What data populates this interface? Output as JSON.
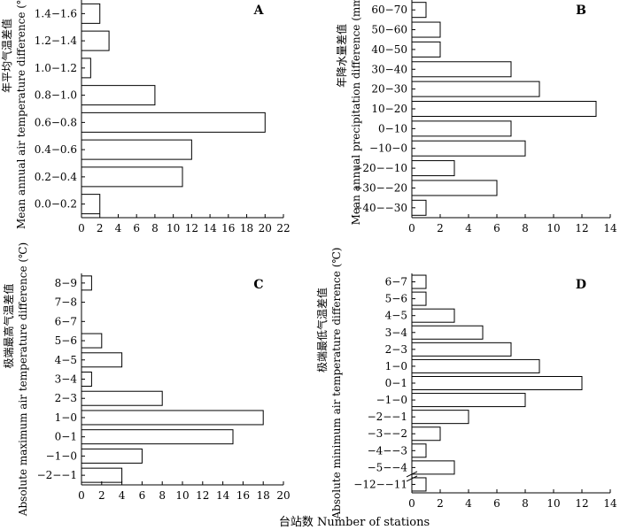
{
  "x_axis_label": "台站数 Number of stations",
  "chart_data": [
    {
      "type": "bar",
      "orientation": "horizontal",
      "panel": "A",
      "ylabel": "Mean annual air temperature difference (℃)",
      "ylabel_cn": "年平均气温差值",
      "categories": [
        "1.4−1.6",
        "1.2−1.4",
        "1.0−1.2",
        "0.8−1.0",
        "0.6−0.8",
        "0.4−0.6",
        "0.2−0.4",
        "0.0−0.2"
      ],
      "values": [
        2,
        3,
        1,
        8,
        20,
        12,
        11,
        2
      ],
      "xlim": [
        0,
        22
      ],
      "xticks": [
        0,
        2,
        4,
        6,
        8,
        10,
        12,
        14,
        16,
        18,
        20,
        22
      ]
    },
    {
      "type": "bar",
      "orientation": "horizontal",
      "panel": "B",
      "ylabel": "Mean annual precipitation difference (mm)",
      "ylabel_cn": "年降水量差值",
      "categories": [
        "60−70",
        "50−60",
        "40−50",
        "30−40",
        "20−30",
        "10−20",
        "0−10",
        "−10−0",
        "−20−−10",
        "−30−−20",
        "−40−−30"
      ],
      "values": [
        1,
        2,
        2,
        7,
        9,
        13,
        7,
        8,
        3,
        6,
        1
      ],
      "xlim": [
        0,
        14
      ],
      "xticks": [
        0,
        2,
        4,
        6,
        8,
        10,
        12,
        14
      ]
    },
    {
      "type": "bar",
      "orientation": "horizontal",
      "panel": "C",
      "ylabel": "Absolute maximum air temperature difference (℃)",
      "ylabel_cn": "极端最高气温差值",
      "categories": [
        "8−9",
        "7−8",
        "6−7",
        "5−6",
        "4−5",
        "3−4",
        "2−3",
        "1−0",
        "0−1",
        "−1−0",
        "−2−−1"
      ],
      "values": [
        1,
        0,
        0,
        2,
        4,
        1,
        8,
        18,
        15,
        6,
        4
      ],
      "xlim": [
        0,
        20
      ],
      "xticks": [
        0,
        2,
        4,
        6,
        8,
        10,
        12,
        14,
        16,
        18,
        20
      ]
    },
    {
      "type": "bar",
      "orientation": "horizontal",
      "panel": "D",
      "ylabel": "Absolute minimum air temperature difference (℃)",
      "ylabel_cn": "极端最低气温差值",
      "categories": [
        "6−7",
        "5−6",
        "4−5",
        "3−4",
        "2−3",
        "1−0",
        "0−1",
        "−1−0",
        "−2−−1",
        "−3−−2",
        "−4−−3",
        "−5−−4",
        "−12−−11"
      ],
      "values": [
        1,
        1,
        3,
        5,
        7,
        9,
        12,
        8,
        4,
        2,
        1,
        3,
        1
      ],
      "xlim": [
        0,
        14
      ],
      "xticks": [
        0,
        2,
        4,
        6,
        8,
        10,
        12,
        14
      ],
      "axis_break": true
    }
  ]
}
